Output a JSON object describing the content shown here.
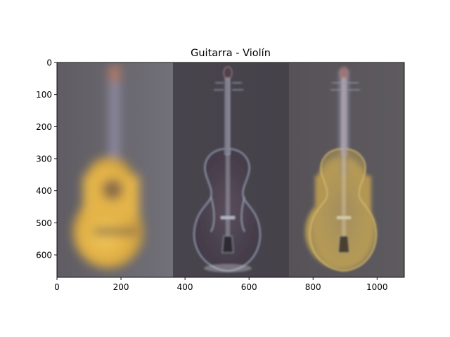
{
  "chart_data": {
    "type": "image",
    "title": "Guitarra - Violín",
    "xlim": [
      0,
      1085
    ],
    "ylim": [
      670,
      0
    ],
    "x_ticks": [
      0,
      200,
      400,
      600,
      800,
      1000
    ],
    "y_ticks": [
      0,
      100,
      200,
      300,
      400,
      500,
      600
    ],
    "panels": [
      {
        "subject": "blurred classical guitar",
        "x_range": [
          0,
          362
        ],
        "tone": "#e3b24a"
      },
      {
        "subject": "high-pass violin",
        "x_range": [
          362,
          724
        ],
        "tone": "#4e4650"
      },
      {
        "subject": "hybrid guitar + violin",
        "x_range": [
          724,
          1085
        ],
        "tone": "#b89a58"
      }
    ]
  }
}
